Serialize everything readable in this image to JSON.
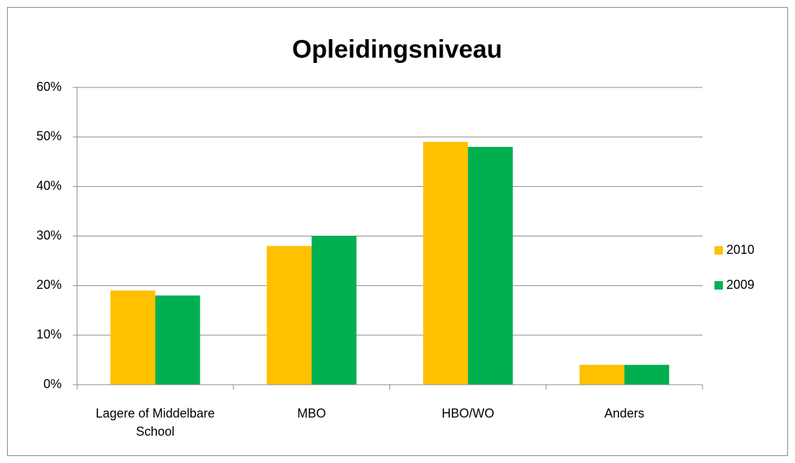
{
  "chart_data": {
    "type": "bar",
    "title": "Opleidingsniveau",
    "categories": [
      "Lagere of Middelbare School",
      "MBO",
      "HBO/WO",
      "Anders"
    ],
    "series": [
      {
        "name": "2010",
        "color": "#FFC000",
        "values": [
          19,
          28,
          49,
          4
        ]
      },
      {
        "name": "2009",
        "color": "#00B050",
        "values": [
          18,
          30,
          48,
          4
        ]
      }
    ],
    "ylim": [
      0,
      60
    ],
    "yticks": [
      {
        "value": 0,
        "label": "0%"
      },
      {
        "value": 10,
        "label": "10%"
      },
      {
        "value": 20,
        "label": "20%"
      },
      {
        "value": 30,
        "label": "30%"
      },
      {
        "value": 40,
        "label": "40%"
      },
      {
        "value": 50,
        "label": "50%"
      },
      {
        "value": 60,
        "label": "60%"
      }
    ],
    "grid": true,
    "legend": "right"
  }
}
